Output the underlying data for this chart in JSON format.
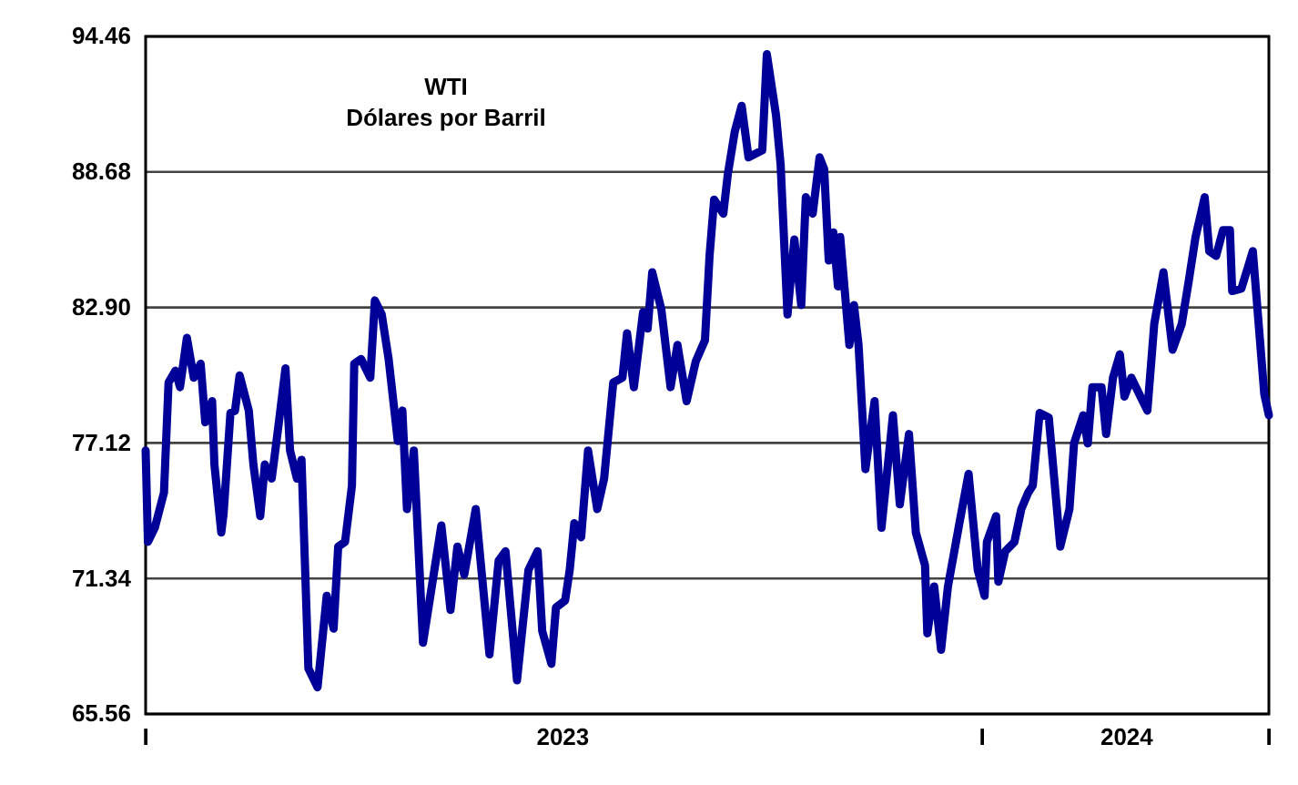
{
  "chart_data": {
    "type": "line",
    "title": "WTI",
    "subtitle": "Dólares por Barril",
    "xlim": [
      "2023-01-01",
      "2024-05-05"
    ],
    "xticks": [
      {
        "value": "2023-01-01",
        "label": "I"
      },
      {
        "value": "2023-07-02",
        "label": "2023"
      },
      {
        "value": "2024-01-01",
        "label": "I"
      },
      {
        "value": "2024-03-04",
        "label": "2024"
      },
      {
        "value": "2024-05-05",
        "label": "I"
      }
    ],
    "ylim": [
      65.56,
      94.46
    ],
    "yticks": [
      65.56,
      71.34,
      77.12,
      {
        "value": 82.9,
        "label": "82.90"
      },
      88.68,
      94.46
    ],
    "grid": "y",
    "line_style": "solid",
    "marker": "none",
    "x": [
      "2023-01-01",
      "2023-01-02",
      "2023-01-05",
      "2023-01-09",
      "2023-01-11",
      "2023-01-14",
      "2023-01-16",
      "2023-01-19",
      "2023-01-22",
      "2023-01-25",
      "2023-01-27",
      "2023-01-30",
      "2023-01-31",
      "2023-02-03",
      "2023-02-04",
      "2023-02-07",
      "2023-02-09",
      "2023-02-11",
      "2023-02-15",
      "2023-02-17",
      "2023-02-20",
      "2023-02-22",
      "2023-02-25",
      "2023-02-28",
      "2023-03-03",
      "2023-03-05",
      "2023-03-08",
      "2023-03-10",
      "2023-03-13",
      "2023-03-17",
      "2023-03-21",
      "2023-03-24",
      "2023-03-26",
      "2023-03-29",
      "2023-04-01",
      "2023-04-02",
      "2023-04-05",
      "2023-04-09",
      "2023-04-11",
      "2023-04-14",
      "2023-04-17",
      "2023-04-21",
      "2023-04-23",
      "2023-04-25",
      "2023-04-28",
      "2023-05-02",
      "2023-05-10",
      "2023-05-14",
      "2023-05-17",
      "2023-05-20",
      "2023-05-25",
      "2023-05-27",
      "2023-05-31",
      "2023-06-04",
      "2023-06-07",
      "2023-06-12",
      "2023-06-17",
      "2023-06-21",
      "2023-06-23",
      "2023-06-27",
      "2023-06-29",
      "2023-07-03",
      "2023-07-05",
      "2023-07-07",
      "2023-07-10",
      "2023-07-13",
      "2023-07-17",
      "2023-07-20",
      "2023-07-24",
      "2023-07-28",
      "2023-07-30",
      "2023-08-02",
      "2023-08-06",
      "2023-08-08",
      "2023-08-10",
      "2023-08-14",
      "2023-08-18",
      "2023-08-21",
      "2023-08-25",
      "2023-08-29",
      "2023-09-02",
      "2023-09-04",
      "2023-09-06",
      "2023-09-10",
      "2023-09-12",
      "2023-09-15",
      "2023-09-18",
      "2023-09-21",
      "2023-09-27",
      "2023-09-29",
      "2023-10-03",
      "2023-10-05",
      "2023-10-08",
      "2023-10-11",
      "2023-10-14",
      "2023-10-16",
      "2023-10-19",
      "2023-10-22",
      "2023-10-24",
      "2023-10-26",
      "2023-10-28",
      "2023-10-30",
      "2023-10-31",
      "2023-11-04",
      "2023-11-06",
      "2023-11-08",
      "2023-11-11",
      "2023-11-15",
      "2023-11-18",
      "2023-11-23",
      "2023-11-26",
      "2023-11-30",
      "2023-12-03",
      "2023-12-07",
      "2023-12-08",
      "2023-12-11",
      "2023-12-14",
      "2023-12-17",
      "2023-12-22",
      "2023-12-26",
      "2023-12-30",
      "2024-01-02",
      "2024-01-03",
      "2024-01-07",
      "2024-01-08",
      "2024-01-11",
      "2024-01-15",
      "2024-01-18",
      "2024-01-21",
      "2024-01-23",
      "2024-01-26",
      "2024-01-30",
      "2024-02-04",
      "2024-02-08",
      "2024-02-10",
      "2024-02-14",
      "2024-02-16",
      "2024-02-18",
      "2024-02-22",
      "2024-02-24",
      "2024-02-27",
      "2024-03-01",
      "2024-03-03",
      "2024-03-06",
      "2024-03-10",
      "2024-03-13",
      "2024-03-16",
      "2024-03-20",
      "2024-03-24",
      "2024-03-28",
      "2024-03-31",
      "2024-04-03",
      "2024-04-07",
      "2024-04-09",
      "2024-04-12",
      "2024-04-15",
      "2024-04-18",
      "2024-04-19",
      "2024-04-23",
      "2024-04-28",
      "2024-05-03",
      "2024-05-05"
    ],
    "series": [
      {
        "color": "#000099",
        "values": [
          76.8,
          72.9,
          73.5,
          75.0,
          79.7,
          80.2,
          79.5,
          81.6,
          79.9,
          80.5,
          78.0,
          78.9,
          76.2,
          73.3,
          74.1,
          78.4,
          78.5,
          80.0,
          78.5,
          76.2,
          74.0,
          76.2,
          75.6,
          77.9,
          80.3,
          76.8,
          75.6,
          76.4,
          67.5,
          66.7,
          70.6,
          69.2,
          72.7,
          72.9,
          75.3,
          80.5,
          80.7,
          79.9,
          83.2,
          82.6,
          80.7,
          77.2,
          78.5,
          74.3,
          76.8,
          68.6,
          73.6,
          70.0,
          72.7,
          71.5,
          74.3,
          72.2,
          68.1,
          72.1,
          72.5,
          67.0,
          71.7,
          72.5,
          69.1,
          67.7,
          70.1,
          70.4,
          71.7,
          73.7,
          73.1,
          76.8,
          74.3,
          75.6,
          79.7,
          79.9,
          81.8,
          79.5,
          82.7,
          82.0,
          84.4,
          82.8,
          79.5,
          81.3,
          78.9,
          80.6,
          81.5,
          85.1,
          87.5,
          86.9,
          88.6,
          90.4,
          91.5,
          89.3,
          89.6,
          93.7,
          91.1,
          89.0,
          82.6,
          85.8,
          83.0,
          87.6,
          86.9,
          89.3,
          88.8,
          84.9,
          86.1,
          83.8,
          85.9,
          81.3,
          83.0,
          81.3,
          76.0,
          78.9,
          73.5,
          78.3,
          74.5,
          77.5,
          73.3,
          71.9,
          69.0,
          71.0,
          68.3,
          71.0,
          73.7,
          75.8,
          71.7,
          70.6,
          72.9,
          74.0,
          71.2,
          72.5,
          72.9,
          74.3,
          75.0,
          75.3,
          78.4,
          78.2,
          72.7,
          74.3,
          77.1,
          78.3,
          77.1,
          79.5,
          79.5,
          77.5,
          79.9,
          80.9,
          79.1,
          79.9,
          79.1,
          78.5,
          82.2,
          84.4,
          81.1,
          82.2,
          84.0,
          85.9,
          87.6,
          85.3,
          85.1,
          86.2,
          86.2,
          83.6,
          83.7,
          85.3,
          79.2,
          78.3
        ]
      }
    ]
  }
}
